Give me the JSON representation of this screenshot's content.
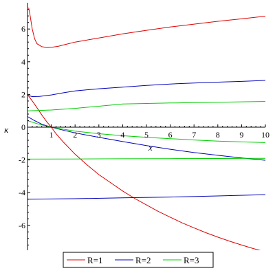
{
  "chart_data": {
    "type": "line",
    "title": "",
    "xlabel": "x",
    "ylabel": "κ",
    "xlim": [
      0,
      10
    ],
    "ylim": [
      -7.5,
      7.5
    ],
    "x_ticks": [
      1,
      2,
      3,
      4,
      5,
      6,
      7,
      8,
      9,
      10
    ],
    "y_ticks": [
      -6,
      -4,
      -2,
      0,
      2,
      4,
      6
    ],
    "grid": false,
    "legend_position": "bottom",
    "series": [
      {
        "name": "R=1",
        "color": "#dd0000",
        "curves": [
          [
            [
              0.05,
              7.3
            ],
            [
              0.1,
              6.9
            ],
            [
              0.2,
              6.0
            ],
            [
              0.3,
              5.4
            ],
            [
              0.4,
              5.1
            ],
            [
              0.6,
              4.92
            ],
            [
              0.8,
              4.87
            ],
            [
              1.0,
              4.88
            ],
            [
              1.3,
              4.95
            ],
            [
              1.6,
              5.06
            ],
            [
              2,
              5.2
            ],
            [
              3,
              5.45
            ],
            [
              4,
              5.7
            ],
            [
              5,
              5.92
            ],
            [
              6,
              6.12
            ],
            [
              7,
              6.3
            ],
            [
              8,
              6.47
            ],
            [
              9,
              6.62
            ],
            [
              10,
              6.78
            ]
          ],
          [
            [
              0,
              2.0
            ],
            [
              0.3,
              1.4
            ],
            [
              0.6,
              0.75
            ],
            [
              0.8,
              0.35
            ],
            [
              1.0,
              0.0
            ],
            [
              1.2,
              -0.4
            ],
            [
              1.5,
              -0.9
            ],
            [
              2,
              -1.65
            ],
            [
              2.5,
              -2.3
            ],
            [
              3,
              -2.9
            ],
            [
              3.5,
              -3.4
            ],
            [
              4,
              -3.9
            ],
            [
              4.5,
              -4.35
            ],
            [
              5,
              -4.75
            ],
            [
              5.5,
              -5.15
            ],
            [
              6,
              -5.5
            ],
            [
              6.5,
              -5.85
            ],
            [
              7,
              -6.15
            ],
            [
              7.5,
              -6.45
            ],
            [
              8,
              -6.72
            ],
            [
              8.5,
              -6.97
            ],
            [
              9,
              -7.2
            ],
            [
              9.5,
              -7.42
            ],
            [
              10,
              -7.62
            ]
          ]
        ]
      },
      {
        "name": "R=2",
        "color": "#0000bb",
        "curves": [
          [
            [
              0,
              1.95
            ],
            [
              0.2,
              1.87
            ],
            [
              0.5,
              1.88
            ],
            [
              1,
              1.97
            ],
            [
              1.5,
              2.1
            ],
            [
              2,
              2.22
            ],
            [
              3,
              2.35
            ],
            [
              4,
              2.45
            ],
            [
              5,
              2.55
            ],
            [
              6,
              2.64
            ],
            [
              7,
              2.7
            ],
            [
              8,
              2.75
            ],
            [
              9,
              2.8
            ],
            [
              10,
              2.86
            ]
          ],
          [
            [
              0,
              0.65
            ],
            [
              0.3,
              0.4
            ],
            [
              0.6,
              0.18
            ],
            [
              1,
              0.0
            ],
            [
              1.5,
              -0.18
            ],
            [
              2,
              -0.35
            ],
            [
              3,
              -0.62
            ],
            [
              4,
              -0.88
            ],
            [
              5,
              -1.12
            ],
            [
              6,
              -1.35
            ],
            [
              7,
              -1.55
            ],
            [
              8,
              -1.72
            ],
            [
              9,
              -1.88
            ],
            [
              10,
              -2.02
            ]
          ],
          [
            [
              0,
              -4.4
            ],
            [
              2,
              -4.37
            ],
            [
              4,
              -4.32
            ],
            [
              6,
              -4.27
            ],
            [
              8,
              -4.2
            ],
            [
              10,
              -4.12
            ]
          ]
        ]
      },
      {
        "name": "R=3",
        "color": "#00cc00",
        "curves": [
          [
            [
              0,
              1.0
            ],
            [
              1,
              1.05
            ],
            [
              2,
              1.15
            ],
            [
              3,
              1.28
            ],
            [
              3.5,
              1.35
            ],
            [
              4,
              1.42
            ],
            [
              5,
              1.45
            ],
            [
              6,
              1.48
            ],
            [
              7,
              1.5
            ],
            [
              8,
              1.52
            ],
            [
              9,
              1.55
            ],
            [
              10,
              1.57
            ]
          ],
          [
            [
              0,
              0.4
            ],
            [
              0.4,
              0.22
            ],
            [
              0.7,
              0.1
            ],
            [
              1,
              0.0
            ],
            [
              1.5,
              -0.12
            ],
            [
              2,
              -0.24
            ],
            [
              3,
              -0.4
            ],
            [
              4,
              -0.52
            ],
            [
              5,
              -0.62
            ],
            [
              6,
              -0.7
            ],
            [
              7,
              -0.78
            ],
            [
              8,
              -0.85
            ],
            [
              9,
              -0.9
            ],
            [
              10,
              -0.94
            ]
          ],
          [
            [
              0,
              -1.95
            ],
            [
              2,
              -1.94
            ],
            [
              4,
              -1.93
            ],
            [
              6,
              -1.92
            ],
            [
              8,
              -1.91
            ],
            [
              10,
              -1.9
            ]
          ]
        ]
      }
    ]
  }
}
